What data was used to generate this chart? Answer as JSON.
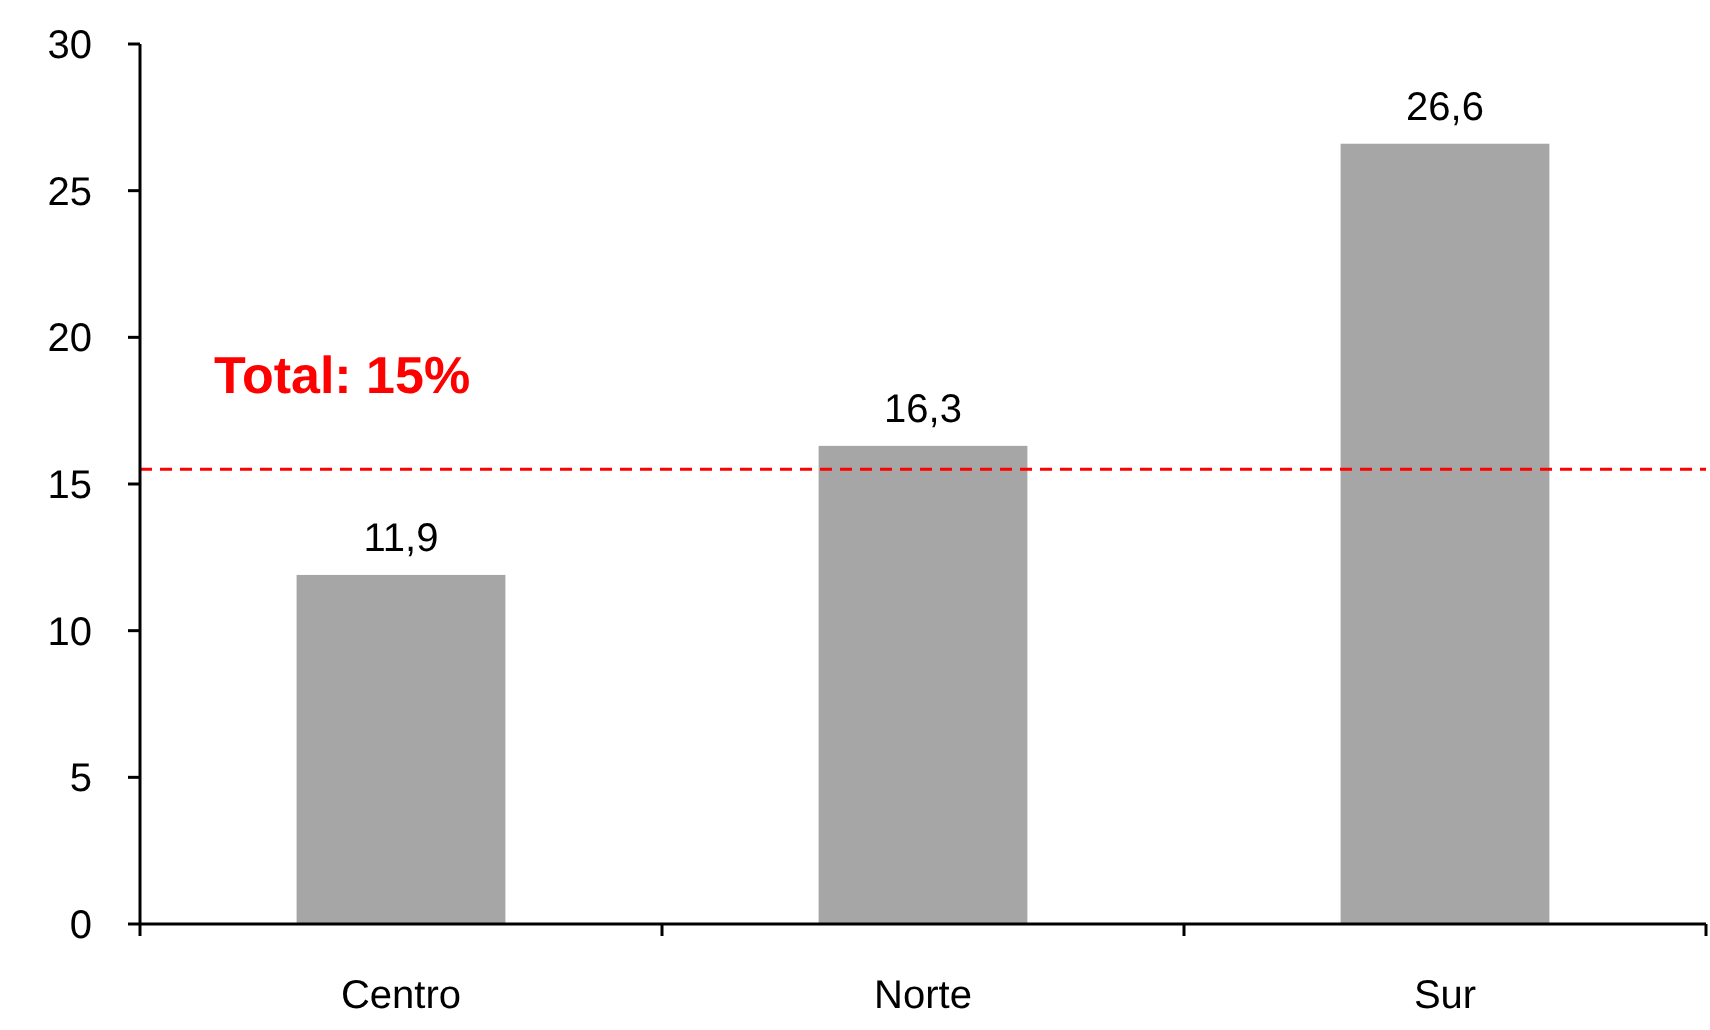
{
  "chart_data": {
    "type": "bar",
    "categories": [
      "Centro",
      "Norte",
      "Sur"
    ],
    "values": [
      11.9,
      16.3,
      26.6
    ],
    "color": "#a6a6a6",
    "value_labels": [
      "11,9",
      "16,3",
      "26,6"
    ],
    "ylim": [
      0,
      30
    ],
    "yticks": [
      0,
      5,
      10,
      15,
      20,
      25,
      30
    ],
    "grid": false,
    "ref_lines": [
      {
        "axis": "y",
        "value": 15.5,
        "label": "Total: 15%",
        "color": "#ff0000",
        "line_style": "dashed"
      }
    ]
  }
}
